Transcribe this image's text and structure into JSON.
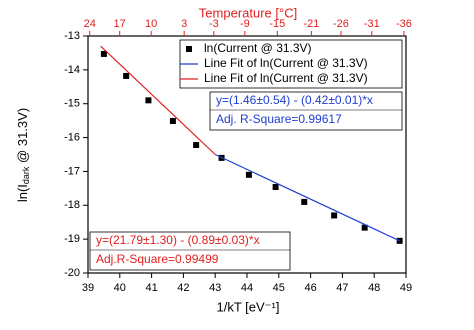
{
  "chart_data": {
    "type": "scatter",
    "x2label": "Temperature [°C]",
    "xlabel": "1/kT [eV⁻¹]",
    "ylabel": [
      "ln(I",
      "dark",
      " @ 31.3V)"
    ],
    "xlim": [
      39,
      49
    ],
    "xticks": [
      39,
      40,
      41,
      42,
      43,
      44,
      45,
      46,
      47,
      48,
      49
    ],
    "ylim": [
      -20,
      -13
    ],
    "yticks": [
      -20,
      -19,
      -18,
      -17,
      -16,
      -15,
      -14,
      -13
    ],
    "x2ticks": [
      24,
      17,
      10,
      3,
      -3,
      -9,
      -15,
      -21,
      -26,
      -31,
      -36
    ],
    "series": [
      {
        "name": "ln(Current @ 31.3V)",
        "color": "#000000",
        "mode": "markers",
        "x": [
          39.5,
          40.2,
          40.9,
          41.67,
          42.4,
          43.2,
          44.06,
          44.9,
          45.8,
          46.74,
          47.7,
          48.8
        ],
        "values": [
          -13.53,
          -14.18,
          -14.9,
          -15.51,
          -16.22,
          -16.6,
          -17.1,
          -17.46,
          -17.9,
          -18.3,
          -18.66,
          -19.05
        ]
      },
      {
        "name": "Line Fit of ln(Current @ 31.3V)",
        "color": "#1f3fd0",
        "mode": "line",
        "x": [
          43.0,
          48.8
        ],
        "values": [
          -16.5,
          -19.05
        ]
      },
      {
        "name": "Line Fit of ln(Current @ 31.3V)",
        "color": "#e02020",
        "mode": "line",
        "x": [
          39.4,
          43.0
        ],
        "values": [
          -13.3,
          -16.5
        ]
      }
    ],
    "annotations": [
      {
        "lines": [
          "y=(1.46±0.54) - (0.42±0.01)*x",
          "Adj. R-Square=0.99617"
        ],
        "color": "#1f3fd0"
      },
      {
        "lines": [
          "y=(21.79±1.30) - (0.89±0.03)*x",
          "Adj.R-Square=0.99499"
        ],
        "color": "#e02020"
      }
    ]
  }
}
